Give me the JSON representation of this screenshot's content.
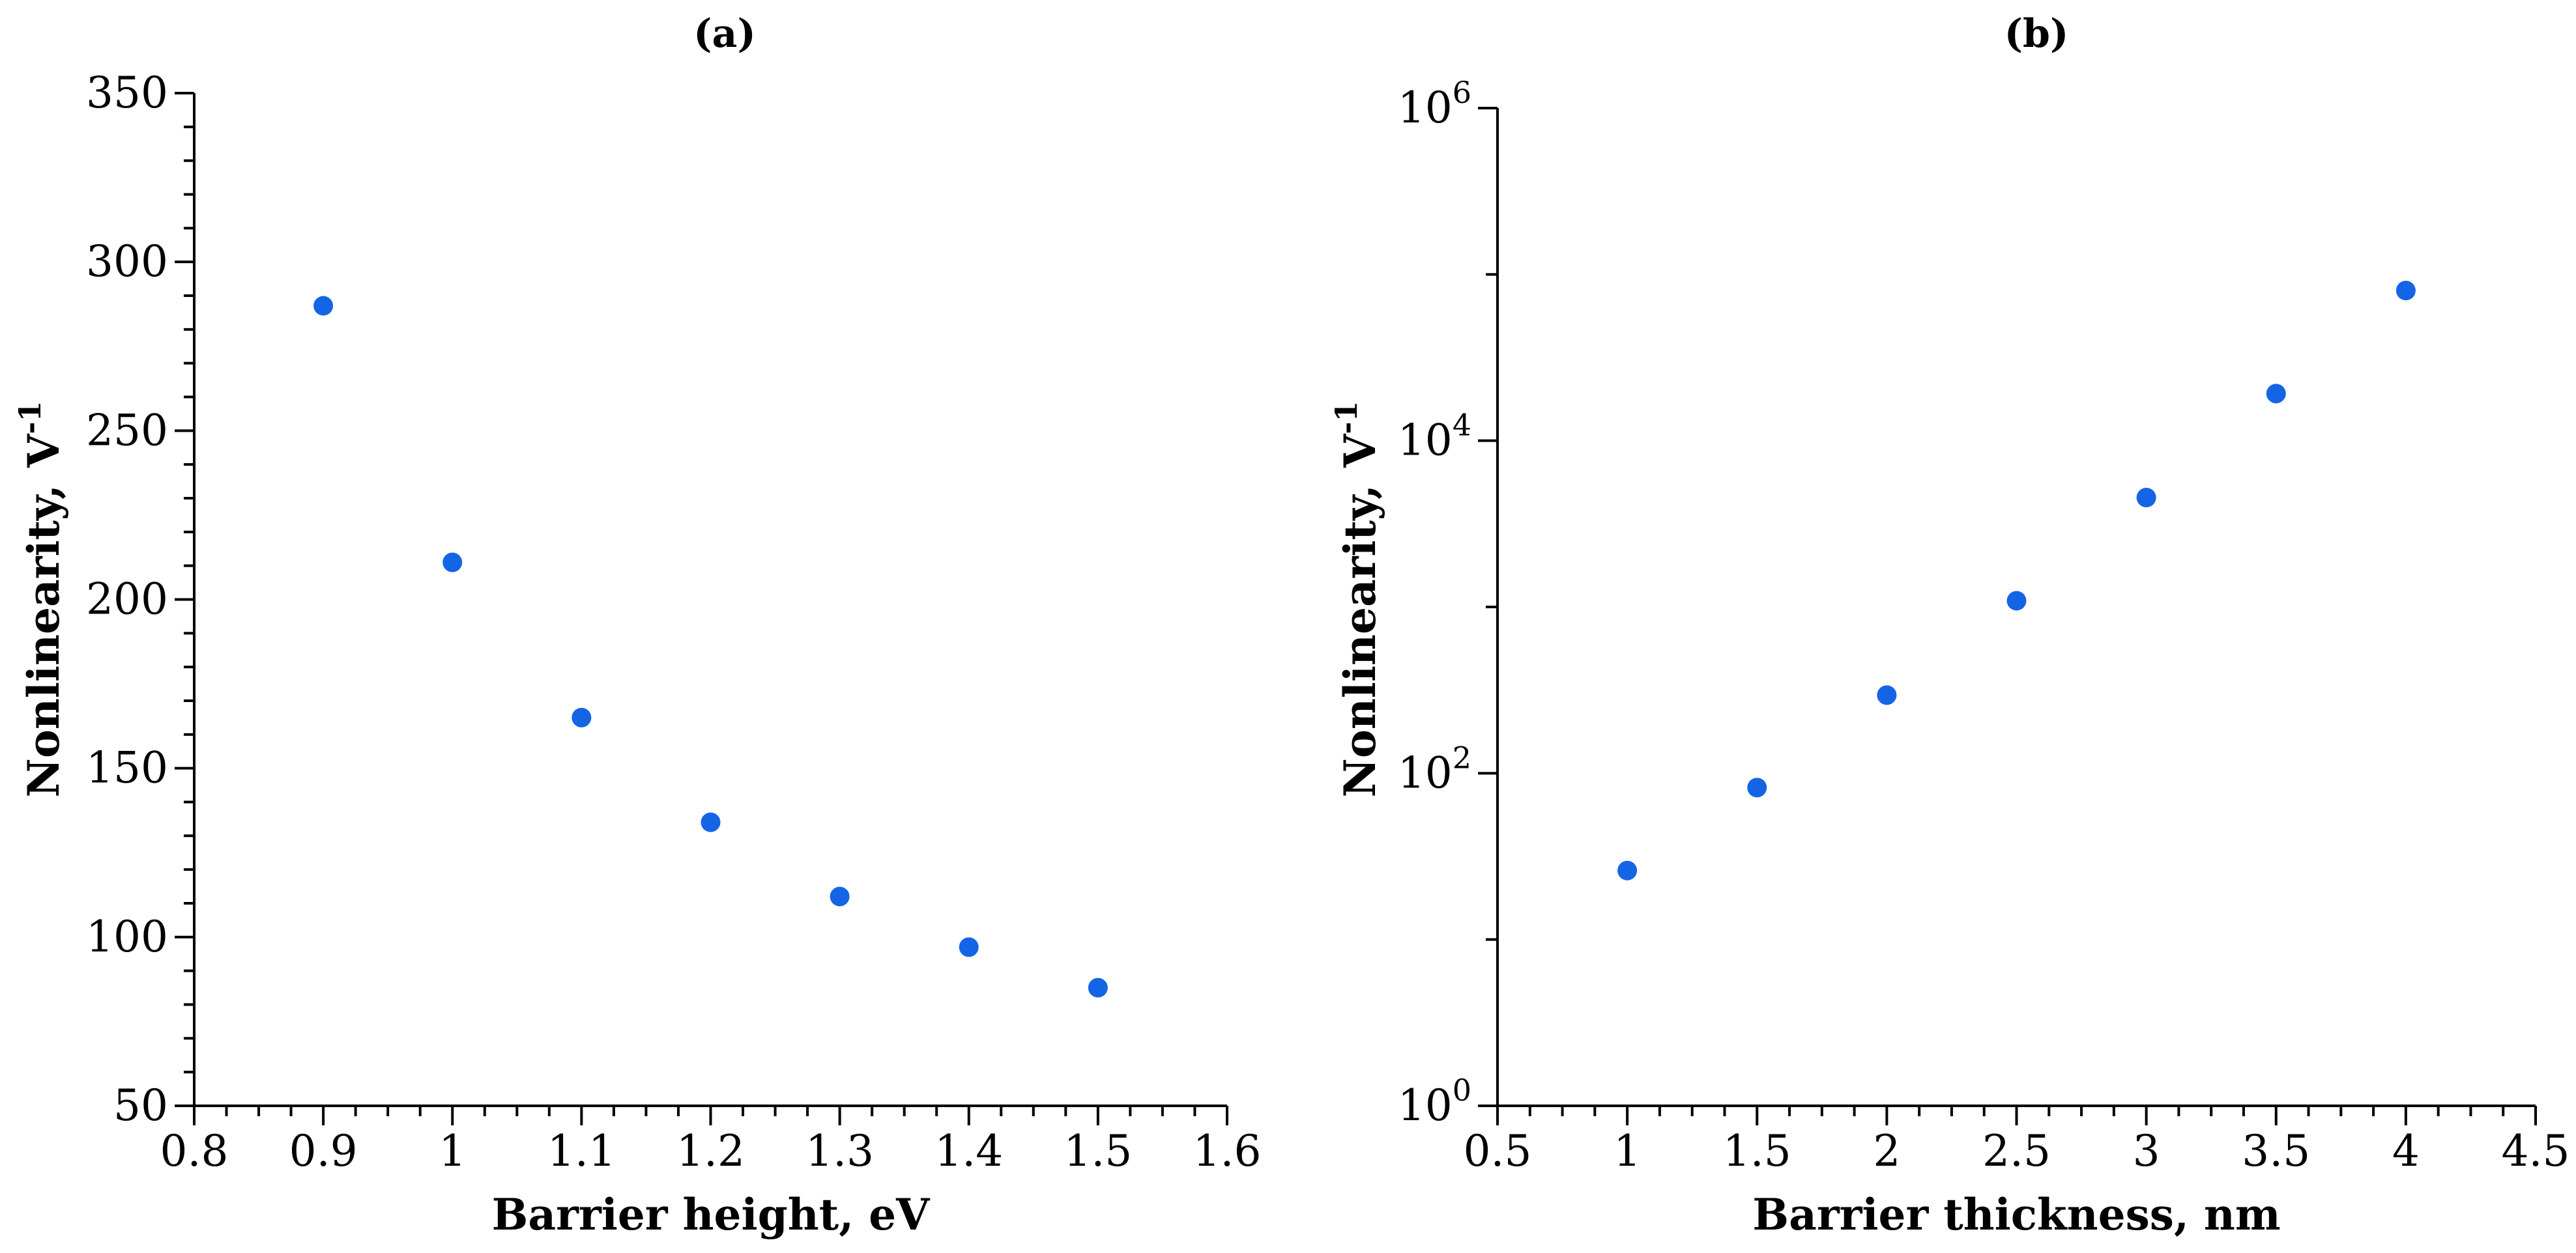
{
  "marker_color": "#1464e6",
  "chart_data": [
    {
      "type": "scatter",
      "panel": "(a)",
      "title": "(a)",
      "xlabel": "Barrier height, eV",
      "ylabel_main": "Nonlinearity,",
      "ylabel_unit": "V",
      "ylabel_sup": "-1",
      "xscale": "linear",
      "yscale": "linear",
      "xlim": [
        0.8,
        1.6
      ],
      "ylim": [
        50,
        350
      ],
      "xticks": [
        "0.8",
        "0.9",
        "1",
        "1.1",
        "1.2",
        "1.3",
        "1.4",
        "1.5",
        "1.6"
      ],
      "yticks": [
        "50",
        "100",
        "150",
        "200",
        "250",
        "300",
        "350"
      ],
      "series": [
        {
          "name": "Nonlinearity",
          "x": [
            0.9,
            1.0,
            1.1,
            1.2,
            1.3,
            1.4,
            1.5
          ],
          "y": [
            287,
            211,
            165,
            134,
            112,
            97,
            85
          ]
        }
      ]
    },
    {
      "type": "scatter",
      "panel": "(b)",
      "title": "(b)",
      "xlabel": "Barrier thickness, nm",
      "ylabel_main": "Nonlinearity,",
      "ylabel_unit": "V",
      "ylabel_sup": "-1",
      "xscale": "linear",
      "yscale": "log",
      "xlim": [
        0.5,
        4.5
      ],
      "ylim": [
        1,
        1000000
      ],
      "xticks": [
        "0.5",
        "1",
        "1.5",
        "2",
        "2.5",
        "3",
        "3.5",
        "4",
        "4.5"
      ],
      "yticks": [
        {
          "base": "10",
          "exp": "0"
        },
        {
          "base": "10",
          "exp": "2"
        },
        {
          "base": "10",
          "exp": "4"
        },
        {
          "base": "10",
          "exp": "6"
        }
      ],
      "series": [
        {
          "name": "Nonlinearity",
          "x": [
            1.0,
            1.5,
            2.0,
            2.5,
            3.0,
            3.5,
            4.0
          ],
          "y": [
            26,
            82,
            295,
            1090,
            4550,
            19200,
            80000
          ]
        }
      ]
    }
  ]
}
